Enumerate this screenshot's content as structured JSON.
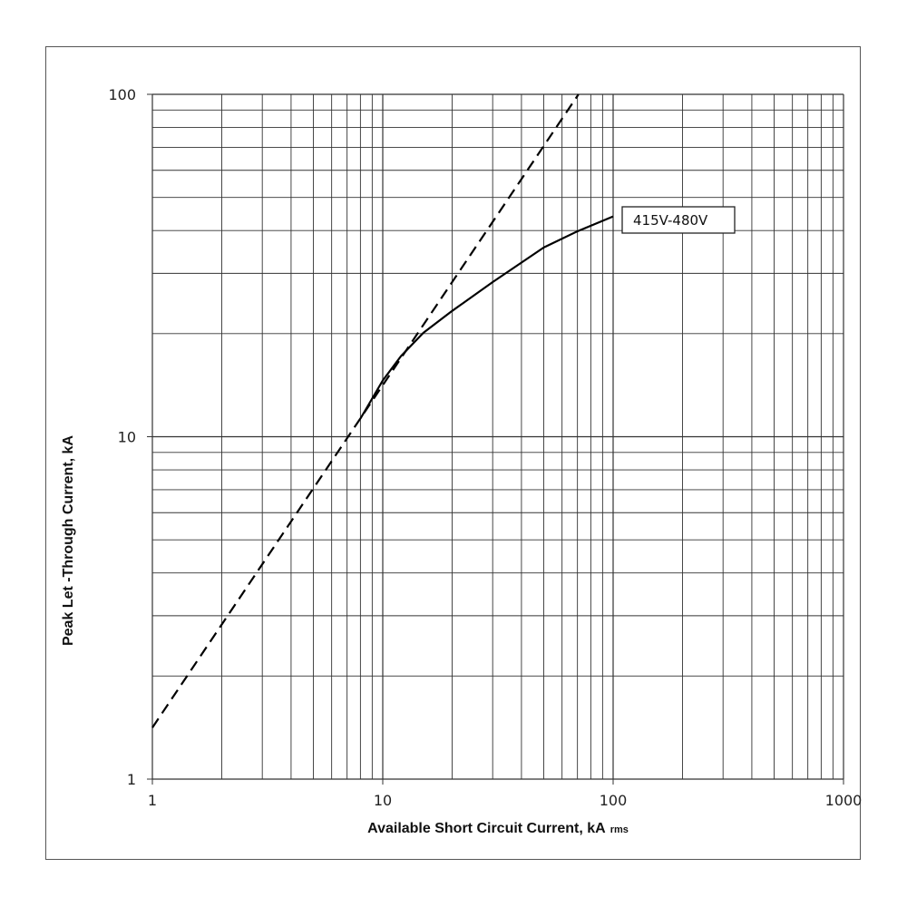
{
  "chart_data": {
    "type": "line",
    "title": "",
    "xlabel": "Available Short Circuit Current, kA",
    "xlabel_sub": "rms",
    "ylabel": "Peak Let -Through Current, kA",
    "xscale": "log",
    "yscale": "log",
    "xlim": [
      1,
      1000
    ],
    "ylim": [
      1,
      100
    ],
    "x_ticks": [
      "1",
      "10",
      "100",
      "1000"
    ],
    "y_ticks": [
      "1",
      "10",
      "100"
    ],
    "grid": true,
    "series": [
      {
        "name": "",
        "style": "dashed",
        "x": [
          1,
          70.7
        ],
        "y": [
          1.414,
          100
        ]
      },
      {
        "name": "415V-480V",
        "style": "solid",
        "x": [
          8,
          10,
          12,
          15,
          20,
          30,
          50,
          70,
          100
        ],
        "y": [
          11.3,
          14.6,
          17.2,
          20.1,
          23.3,
          28.3,
          35.7,
          39.8,
          44
        ]
      }
    ],
    "legend_label": "415V-480V",
    "line_color": "#000000"
  }
}
